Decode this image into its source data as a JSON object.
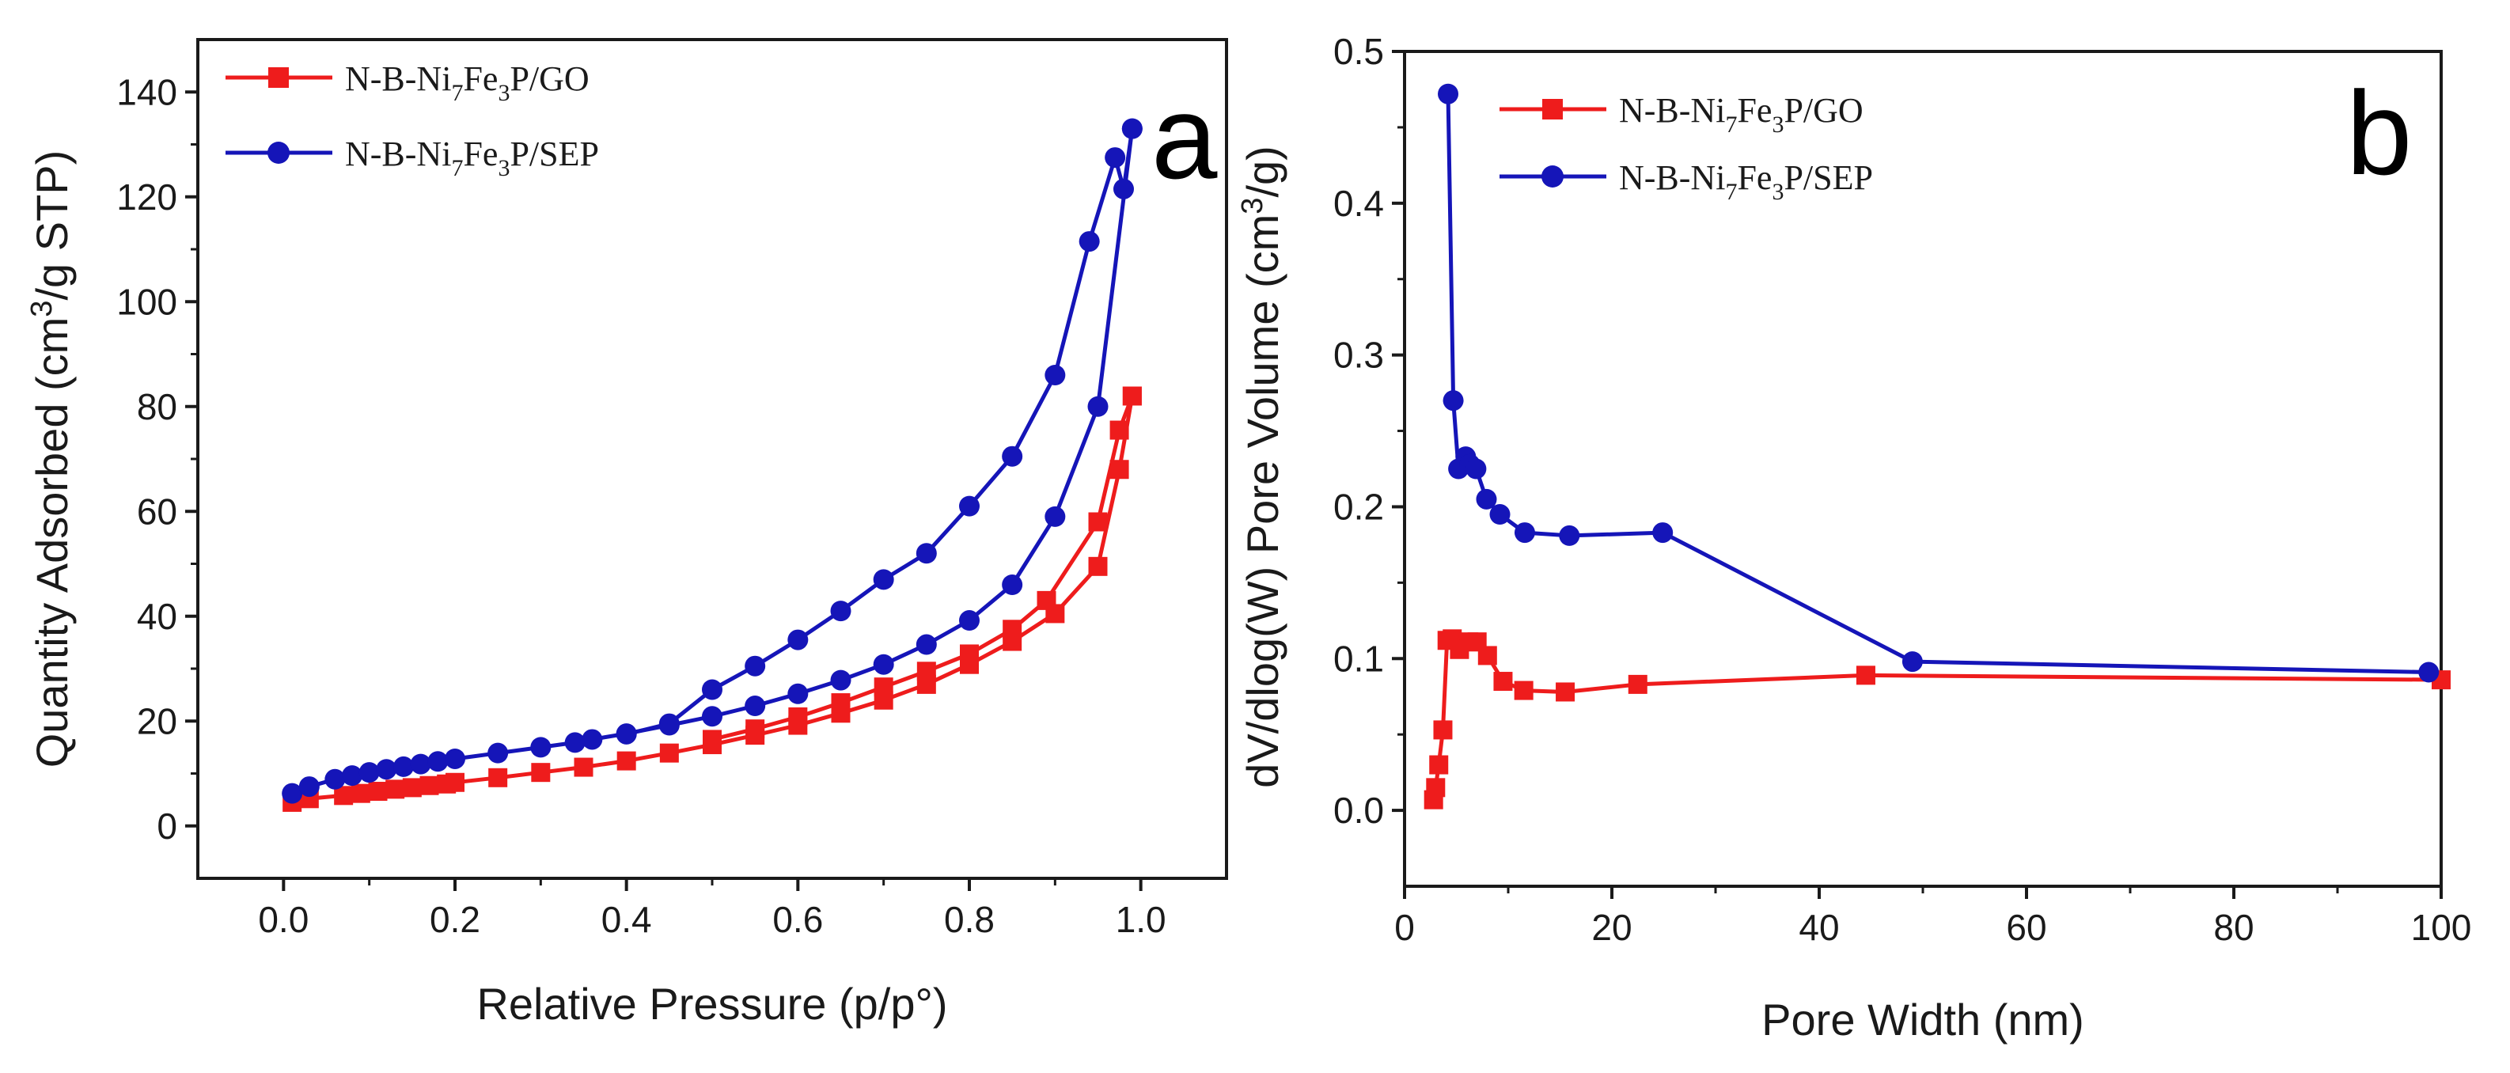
{
  "colors": {
    "red": "#ee1c1c",
    "blue": "#1515b8",
    "axis": "#1a1a1a"
  },
  "chart_data": [
    {
      "type": "line",
      "panel_label": "a",
      "xlabel": "Relative Pressure (p/p°)",
      "ylabel": "Quantity Adsorbed (cm³/g STP)",
      "xlim": [
        -0.1,
        1.1
      ],
      "ylim": [
        -10,
        150
      ],
      "xticks": [
        0.0,
        0.2,
        0.4,
        0.6,
        0.8,
        1.0
      ],
      "xtick_labels": [
        "0.0",
        "0.2",
        "0.4",
        "0.6",
        "0.8",
        "1.0"
      ],
      "yticks": [
        0,
        20,
        40,
        60,
        80,
        100,
        120,
        140
      ],
      "ytick_labels": [
        "0",
        "20",
        "40",
        "60",
        "80",
        "100",
        "120",
        "140"
      ],
      "grid": false,
      "legend_position": "top-left",
      "series": [
        {
          "name": "N-B-Ni7Fe3P/GO",
          "name_parts": {
            "a": "N-B-Ni",
            "s1": "7",
            "b": "Fe",
            "s2": "3",
            "c": "P/GO"
          },
          "color": "#ee1c1c",
          "marker": "square",
          "adsorption": {
            "x": [
              0.01,
              0.03,
              0.07,
              0.09,
              0.11,
              0.13,
              0.15,
              0.17,
              0.19,
              0.2,
              0.25,
              0.3,
              0.35,
              0.4,
              0.45,
              0.5,
              0.55,
              0.6,
              0.65,
              0.7,
              0.75,
              0.8,
              0.85,
              0.9,
              0.95,
              0.975,
              0.99
            ],
            "y": [
              4.5,
              5.2,
              5.8,
              6.2,
              6.6,
              7.0,
              7.3,
              7.7,
              8.0,
              8.3,
              9.2,
              10.2,
              11.2,
              12.4,
              13.9,
              15.5,
              17.3,
              19.2,
              21.5,
              24.0,
              27.0,
              30.8,
              35.2,
              40.5,
              49.5,
              68.0,
              82.0
            ]
          },
          "desorption": {
            "x": [
              0.99,
              0.975,
              0.95,
              0.89,
              0.85,
              0.8,
              0.75,
              0.7,
              0.65,
              0.6,
              0.55,
              0.5
            ],
            "y": [
              82.0,
              75.5,
              58.0,
              43.0,
              37.5,
              32.8,
              29.5,
              26.5,
              23.5,
              20.8,
              18.5,
              16.5
            ]
          }
        },
        {
          "name": "N-B-Ni7Fe3P/SEP",
          "name_parts": {
            "a": "N-B-Ni",
            "s1": "7",
            "b": "Fe",
            "s2": "3",
            "c": "P/SEP"
          },
          "color": "#1515b8",
          "marker": "circle",
          "adsorption": {
            "x": [
              0.01,
              0.03,
              0.06,
              0.08,
              0.1,
              0.12,
              0.14,
              0.16,
              0.18,
              0.2,
              0.25,
              0.3,
              0.34,
              0.36,
              0.4,
              0.45,
              0.5,
              0.55,
              0.6,
              0.65,
              0.7,
              0.75,
              0.8,
              0.85,
              0.9,
              0.95,
              0.99
            ],
            "y": [
              6.2,
              7.5,
              8.9,
              9.6,
              10.2,
              10.8,
              11.3,
              11.8,
              12.3,
              12.8,
              13.9,
              15.0,
              15.9,
              16.5,
              17.6,
              19.2,
              20.9,
              22.9,
              25.2,
              27.8,
              30.8,
              34.6,
              39.2,
              46.0,
              59.0,
              80.0,
              133.0
            ]
          },
          "desorption": {
            "x": [
              0.99,
              0.98,
              0.97,
              0.94,
              0.9,
              0.85,
              0.8,
              0.75,
              0.7,
              0.65,
              0.6,
              0.55,
              0.5,
              0.45,
              0.4
            ],
            "y": [
              133.0,
              121.5,
              127.5,
              111.5,
              86.0,
              70.5,
              61.0,
              52.0,
              47.0,
              41.0,
              35.5,
              30.5,
              26.0,
              19.5,
              17.5
            ]
          }
        }
      ]
    },
    {
      "type": "line",
      "panel_label": "b",
      "xlabel": "Pore Width (nm)",
      "ylabel": "dV/dlog(W) Pore Volume (cm³/g)",
      "xlim": [
        0,
        100
      ],
      "ylim": [
        -0.05,
        0.5
      ],
      "xticks": [
        0,
        20,
        40,
        60,
        80,
        100
      ],
      "xtick_labels": [
        "0",
        "20",
        "40",
        "60",
        "80",
        "100"
      ],
      "yticks": [
        0.0,
        0.1,
        0.2,
        0.3,
        0.4,
        0.5
      ],
      "ytick_labels": [
        "0.0",
        "0.1",
        "0.2",
        "0.3",
        "0.4",
        "0.5"
      ],
      "grid": false,
      "legend_position": "top-center",
      "series": [
        {
          "name": "N-B-Ni7Fe3P/GO",
          "name_parts": {
            "a": "N-B-Ni",
            "s1": "7",
            "b": "Fe",
            "s2": "3",
            "c": "P/GO"
          },
          "color": "#ee1c1c",
          "marker": "square",
          "x": [
            2.8,
            3.0,
            3.3,
            3.7,
            4.1,
            4.6,
            5.3,
            6.2,
            7.0,
            8.0,
            9.5,
            11.5,
            15.5,
            22.5,
            44.5,
            100.0
          ],
          "y": [
            0.007,
            0.015,
            0.03,
            0.053,
            0.112,
            0.113,
            0.106,
            0.111,
            0.111,
            0.102,
            0.085,
            0.079,
            0.078,
            0.083,
            0.089,
            0.086
          ]
        },
        {
          "name": "N-B-Ni7Fe3P/SEP",
          "name_parts": {
            "a": "N-B-Ni",
            "s1": "7",
            "b": "Fe",
            "s2": "3",
            "c": "P/SEP"
          },
          "color": "#1515b8",
          "marker": "circle",
          "x": [
            4.2,
            4.7,
            5.2,
            5.9,
            6.3,
            6.9,
            7.9,
            9.2,
            11.6,
            15.9,
            24.9,
            49.0,
            98.8
          ],
          "y": [
            0.472,
            0.27,
            0.225,
            0.233,
            0.228,
            0.225,
            0.205,
            0.195,
            0.183,
            0.181,
            0.183,
            0.098,
            0.091
          ]
        }
      ]
    }
  ]
}
